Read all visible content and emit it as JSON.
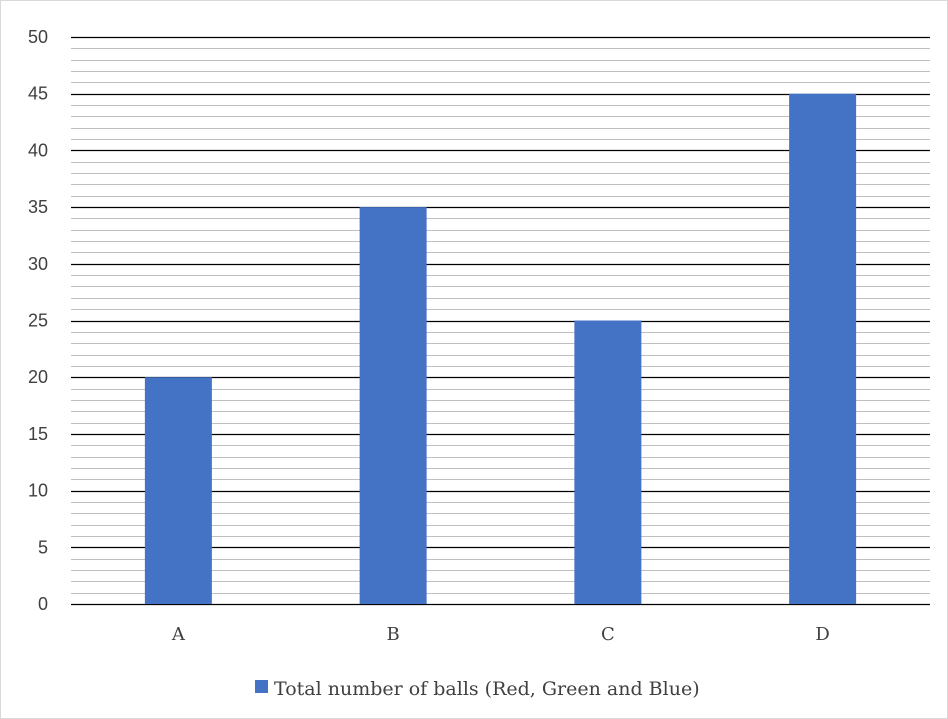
{
  "chart_data": {
    "type": "bar",
    "categories": [
      "A",
      "B",
      "C",
      "D"
    ],
    "series": [
      {
        "name": "Total number of balls (Red, Green and Blue)",
        "values": [
          20,
          35,
          25,
          45
        ],
        "color": "#4472C4"
      }
    ],
    "y_ticks": [
      "0",
      "5",
      "10",
      "15",
      "20",
      "25",
      "30",
      "35",
      "40",
      "45",
      "50"
    ],
    "ylim": [
      0,
      50
    ],
    "major_grid_step": 5,
    "minor_grid_step": 1,
    "grid": true,
    "legend_position": "bottom",
    "colors": {
      "bar": "#4472C4",
      "major_grid": "#000000",
      "minor_grid": "#bfbfbf",
      "text": "#404040"
    }
  }
}
